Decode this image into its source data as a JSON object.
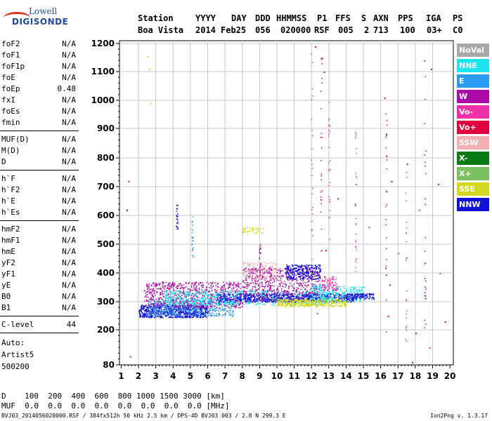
{
  "logo": {
    "line1": "Lowell",
    "line2": "DIGISONDE"
  },
  "header": {
    "labels": [
      "Station",
      "YYYY",
      "DAY",
      "DDD",
      "HHMMSS",
      "P1",
      "FFS",
      "S",
      "AXN",
      "PPS",
      "IGA",
      "PS"
    ],
    "values": [
      "Boa Vista",
      "2014",
      "Feb25",
      "056",
      "020000",
      "RSF",
      "005",
      "2",
      "713",
      "100",
      "03+",
      "C0"
    ]
  },
  "params": {
    "group1": [
      {
        "k": "foF2",
        "v": "N/A"
      },
      {
        "k": "foF1",
        "v": "N/A"
      },
      {
        "k": "foF1p",
        "v": "N/A"
      },
      {
        "k": "foE",
        "v": "N/A"
      },
      {
        "k": "foEp",
        "v": "0.48"
      },
      {
        "k": "fxI",
        "v": "N/A"
      },
      {
        "k": "foEs",
        "v": "N/A"
      },
      {
        "k": "fmin",
        "v": "N/A"
      }
    ],
    "group2": [
      {
        "k": "MUF(D)",
        "v": "N/A"
      },
      {
        "k": "M(D)",
        "v": "N/A"
      },
      {
        "k": "D",
        "v": "N/A"
      }
    ],
    "group3": [
      {
        "k": "h`F",
        "v": "N/A"
      },
      {
        "k": "h`F2",
        "v": "N/A"
      },
      {
        "k": "h`E",
        "v": "N/A"
      },
      {
        "k": "h`Es",
        "v": "N/A"
      }
    ],
    "group4": [
      {
        "k": "hmF2",
        "v": "N/A"
      },
      {
        "k": "hmF1",
        "v": "N/A"
      },
      {
        "k": "hmE",
        "v": "N/A"
      },
      {
        "k": "yF2",
        "v": "N/A"
      },
      {
        "k": "yF1",
        "v": "N/A"
      },
      {
        "k": "yE",
        "v": "N/A"
      },
      {
        "k": "B0",
        "v": "N/A"
      },
      {
        "k": "B1",
        "v": "N/A"
      }
    ],
    "clevel": {
      "k": "C-level",
      "v": "44"
    },
    "auto": [
      "Auto:",
      "Artist5",
      "500200"
    ]
  },
  "bottom": {
    "row1": "D    100  200  400  600  800 1000 1500 3000 [km]",
    "row2": "MUF  0.0  0.0  0.0  0.0  0.0  0.0  0.0  0.0 [MHz]"
  },
  "footer": {
    "left": "BVJ03_2014056020000.RSF / 384fx512h 50 kHz 2.5 km / DPS-4D BVJ03 003 / 2.8 N 299.3 E",
    "right": "Ion2Png v. 1.3.17"
  },
  "chart_data": {
    "type": "scatter",
    "x_ticks": [
      "1",
      "2",
      "3",
      "4",
      "5",
      "6",
      "7",
      "8",
      "9",
      "10",
      "11",
      "12",
      "13",
      "14",
      "15",
      "16",
      "17",
      "18",
      "19",
      "20"
    ],
    "y_ticks": [
      "80",
      "200",
      "300",
      "400",
      "500",
      "600",
      "700",
      "800",
      "900",
      "1000",
      "1100",
      "1200"
    ],
    "xlim": [
      0.9,
      20.2
    ],
    "ylim": [
      80,
      1210
    ],
    "grid": true,
    "legend_position": "right",
    "legend": [
      {
        "name": "NoVal",
        "color": "#a8a8a8"
      },
      {
        "name": "NNE",
        "color": "#19e6f0"
      },
      {
        "name": "E",
        "color": "#2a9af2"
      },
      {
        "name": "W",
        "color": "#aa0aa8"
      },
      {
        "name": "Vo-",
        "color": "#f030a8"
      },
      {
        "name": "Vo+",
        "color": "#e0003c"
      },
      {
        "name": "SSW",
        "color": "#f4b0b0"
      },
      {
        "name": "X-",
        "color": "#0a7a14"
      },
      {
        "name": "X+",
        "color": "#7ac060"
      },
      {
        "name": "SSE",
        "color": "#d4d820"
      },
      {
        "name": "NNW",
        "color": "#1010d8"
      }
    ],
    "clusters": [
      {
        "series": "NNW",
        "x": [
          2.0,
          6.0
        ],
        "y": [
          245,
          290
        ],
        "n": 700
      },
      {
        "series": "E",
        "x": [
          2.5,
          7.5
        ],
        "y": [
          250,
          310
        ],
        "n": 500
      },
      {
        "series": "W",
        "x": [
          2.3,
          8.0
        ],
        "y": [
          280,
          370
        ],
        "n": 700
      },
      {
        "series": "NNE",
        "x": [
          3.5,
          13.0
        ],
        "y": [
          290,
          340
        ],
        "n": 700
      },
      {
        "series": "W",
        "x": [
          8.0,
          12.5
        ],
        "y": [
          300,
          420
        ],
        "n": 700
      },
      {
        "series": "NNW",
        "x": [
          6.5,
          14.5
        ],
        "y": [
          300,
          330
        ],
        "n": 600
      },
      {
        "series": "NNW",
        "x": [
          10.5,
          12.5
        ],
        "y": [
          380,
          430
        ],
        "n": 250
      },
      {
        "series": "SSE",
        "x": [
          10.0,
          14.0
        ],
        "y": [
          285,
          310
        ],
        "n": 400
      },
      {
        "series": "SSE",
        "x": [
          8.0,
          9.2
        ],
        "y": [
          540,
          560
        ],
        "n": 40
      },
      {
        "series": "SSW",
        "x": [
          8.0,
          10.0
        ],
        "y": [
          380,
          440
        ],
        "n": 150
      },
      {
        "series": "NNE",
        "x": [
          12.0,
          15.0
        ],
        "y": [
          300,
          360
        ],
        "n": 250
      },
      {
        "series": "Vo-",
        "x": [
          12.5,
          13.5
        ],
        "y": [
          340,
          390
        ],
        "n": 80
      },
      {
        "series": "NNW",
        "x": [
          14.0,
          15.6
        ],
        "y": [
          310,
          330
        ],
        "n": 120
      }
    ],
    "scatter_points": [
      {
        "series": "Vo+",
        "x": 12.2,
        "y": 1190
      },
      {
        "series": "Vo-",
        "x": 12.6,
        "y": 1150
      },
      {
        "series": "W",
        "x": 12.7,
        "y": 1100
      },
      {
        "series": "Vo+",
        "x": 16.2,
        "y": 1010
      },
      {
        "series": "Vo-",
        "x": 18.5,
        "y": 1140
      },
      {
        "series": "X-",
        "x": 18.9,
        "y": 1110
      },
      {
        "series": "SSE",
        "x": 2.5,
        "y": 1155
      },
      {
        "series": "SSE",
        "x": 2.6,
        "y": 1110
      },
      {
        "series": "SSE",
        "x": 2.7,
        "y": 990
      },
      {
        "series": "Vo+",
        "x": 1.4,
        "y": 720
      },
      {
        "series": "Vo+",
        "x": 17.5,
        "y": 780
      },
      {
        "series": "Vo+",
        "x": 16.3,
        "y": 880
      },
      {
        "series": "Vo-",
        "x": 15.3,
        "y": 560
      },
      {
        "series": "X-",
        "x": 13.5,
        "y": 660
      },
      {
        "series": "X-",
        "x": 14.5,
        "y": 640
      },
      {
        "series": "Vo+",
        "x": 16.6,
        "y": 720
      },
      {
        "series": "Vo+",
        "x": 19.3,
        "y": 710
      },
      {
        "series": "Vo-",
        "x": 18.2,
        "y": 620
      },
      {
        "series": "Vo+",
        "x": 12.8,
        "y": 480
      },
      {
        "series": "Vo-",
        "x": 17.0,
        "y": 470
      },
      {
        "series": "Vo+",
        "x": 18.0,
        "y": 190
      },
      {
        "series": "Vo-",
        "x": 18.8,
        "y": 140
      },
      {
        "series": "Vo+",
        "x": 17.8,
        "y": 90
      },
      {
        "series": "W",
        "x": 1.5,
        "y": 110
      },
      {
        "series": "NNW",
        "x": 1.3,
        "y": 620
      },
      {
        "series": "Vo-",
        "x": 12.3,
        "y": 260
      },
      {
        "series": "Vo+",
        "x": 16.4,
        "y": 250
      },
      {
        "series": "X-",
        "x": 16.5,
        "y": 360
      },
      {
        "series": "Vo-",
        "x": 19.4,
        "y": 400
      },
      {
        "series": "Vo+",
        "x": 19.7,
        "y": 230
      }
    ],
    "column_streaks": [
      {
        "x": 12.55,
        "y": [
          450,
          1150
        ],
        "series": "Vo+"
      },
      {
        "x": 13.0,
        "y": [
          500,
          1000
        ],
        "series": "Vo-"
      },
      {
        "x": 16.3,
        "y": [
          150,
          1000
        ],
        "series": "Vo+"
      },
      {
        "x": 17.45,
        "y": [
          150,
          800
        ],
        "series": "Vo-"
      },
      {
        "x": 18.55,
        "y": [
          90,
          1150
        ],
        "series": "Vo+"
      },
      {
        "x": 14.55,
        "y": [
          400,
          900
        ],
        "series": "Vo-"
      },
      {
        "x": 12.0,
        "y": [
          330,
          1180
        ],
        "series": "Vo-"
      },
      {
        "x": 9.0,
        "y": [
          390,
          500
        ],
        "series": "W"
      },
      {
        "x": 4.2,
        "y": [
          540,
          640
        ],
        "series": "NNW"
      },
      {
        "x": 5.1,
        "y": [
          450,
          600
        ],
        "series": "E"
      }
    ]
  }
}
